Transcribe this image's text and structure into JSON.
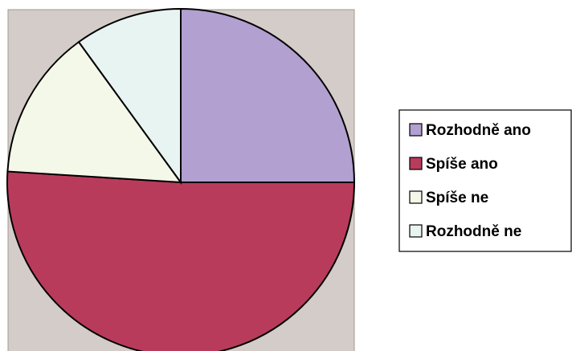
{
  "chart_data": {
    "type": "pie",
    "categories": [
      "Rozhodně ano",
      "Spíše ano",
      "Spíše ne",
      "Rozhodně ne"
    ],
    "values": [
      25,
      51,
      14,
      10
    ],
    "colors": [
      "#b1a0d0",
      "#b93b5b",
      "#f4f8e8",
      "#e8f4f2"
    ],
    "legend": "right"
  }
}
